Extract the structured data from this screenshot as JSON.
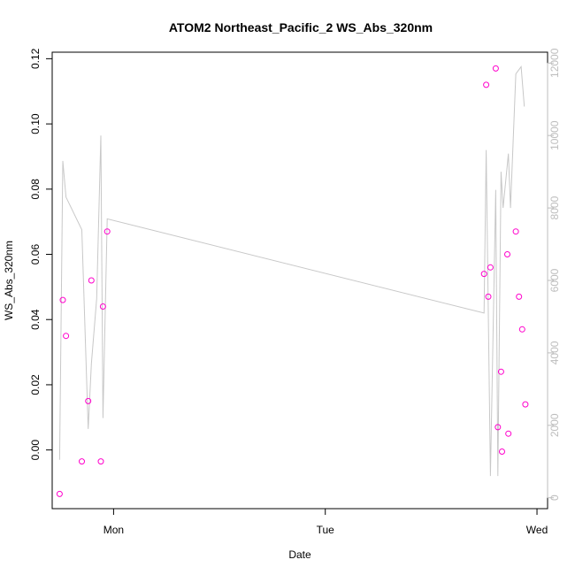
{
  "chart_data": {
    "type": "scatter",
    "title": "ATOM2 Northeast_Pacific_2 WS_Abs_320nm",
    "xlabel": "Date",
    "ylabel": "WS_Abs_320nm",
    "x_tick_labels": [
      "Mon",
      "Tue",
      "Wed"
    ],
    "y_ticks": [
      "0.00",
      "0.02",
      "0.04",
      "0.06",
      "0.08",
      "0.10",
      "0.12"
    ],
    "y2_ticks": [
      "0",
      "2000",
      "4000",
      "6000",
      "8000",
      "10000",
      "12000"
    ],
    "ylim": [
      -0.018,
      0.122
    ],
    "y2lim": [
      -300,
      12300
    ],
    "xlim_days": [
      -0.29,
      2.05
    ],
    "colors": {
      "points": "#ff00cc",
      "line": "#c8c8c8",
      "right_axis": "#bdbdbd"
    },
    "points": [
      {
        "x": -0.255,
        "y": -0.0135
      },
      {
        "x": -0.24,
        "y": 0.046
      },
      {
        "x": -0.225,
        "y": 0.035
      },
      {
        "x": -0.15,
        "y": -0.0035
      },
      {
        "x": -0.12,
        "y": 0.015
      },
      {
        "x": -0.105,
        "y": 0.052
      },
      {
        "x": -0.06,
        "y": -0.0035
      },
      {
        "x": -0.05,
        "y": 0.044
      },
      {
        "x": -0.03,
        "y": 0.067
      },
      {
        "x": 1.75,
        "y": 0.054
      },
      {
        "x": 1.76,
        "y": 0.112
      },
      {
        "x": 1.77,
        "y": 0.047
      },
      {
        "x": 1.78,
        "y": 0.056
      },
      {
        "x": 1.805,
        "y": 0.117
      },
      {
        "x": 1.815,
        "y": 0.007
      },
      {
        "x": 1.83,
        "y": 0.024
      },
      {
        "x": 1.835,
        "y": -0.0005
      },
      {
        "x": 1.86,
        "y": 0.06
      },
      {
        "x": 1.865,
        "y": 0.005
      },
      {
        "x": 1.9,
        "y": 0.067
      },
      {
        "x": 1.915,
        "y": 0.047
      },
      {
        "x": 1.93,
        "y": 0.037
      },
      {
        "x": 1.945,
        "y": 0.014
      }
    ],
    "line_series_y2": [
      {
        "x": -0.255,
        "y": 1050
      },
      {
        "x": -0.24,
        "y": 9300
      },
      {
        "x": -0.225,
        "y": 8300
      },
      {
        "x": -0.15,
        "y": 7400
      },
      {
        "x": -0.12,
        "y": 1900
      },
      {
        "x": -0.105,
        "y": 3700
      },
      {
        "x": -0.08,
        "y": 5500
      },
      {
        "x": -0.06,
        "y": 10000
      },
      {
        "x": -0.05,
        "y": 2200
      },
      {
        "x": -0.03,
        "y": 7700
      },
      {
        "x": 1.75,
        "y": 5100
      },
      {
        "x": 1.76,
        "y": 9600
      },
      {
        "x": 1.78,
        "y": 600
      },
      {
        "x": 1.805,
        "y": 8500
      },
      {
        "x": 1.815,
        "y": 600
      },
      {
        "x": 1.83,
        "y": 9000
      },
      {
        "x": 1.84,
        "y": 8000
      },
      {
        "x": 1.865,
        "y": 9500
      },
      {
        "x": 1.875,
        "y": 8000
      },
      {
        "x": 1.9,
        "y": 11700
      },
      {
        "x": 1.925,
        "y": 11900
      },
      {
        "x": 1.94,
        "y": 10800
      }
    ]
  }
}
